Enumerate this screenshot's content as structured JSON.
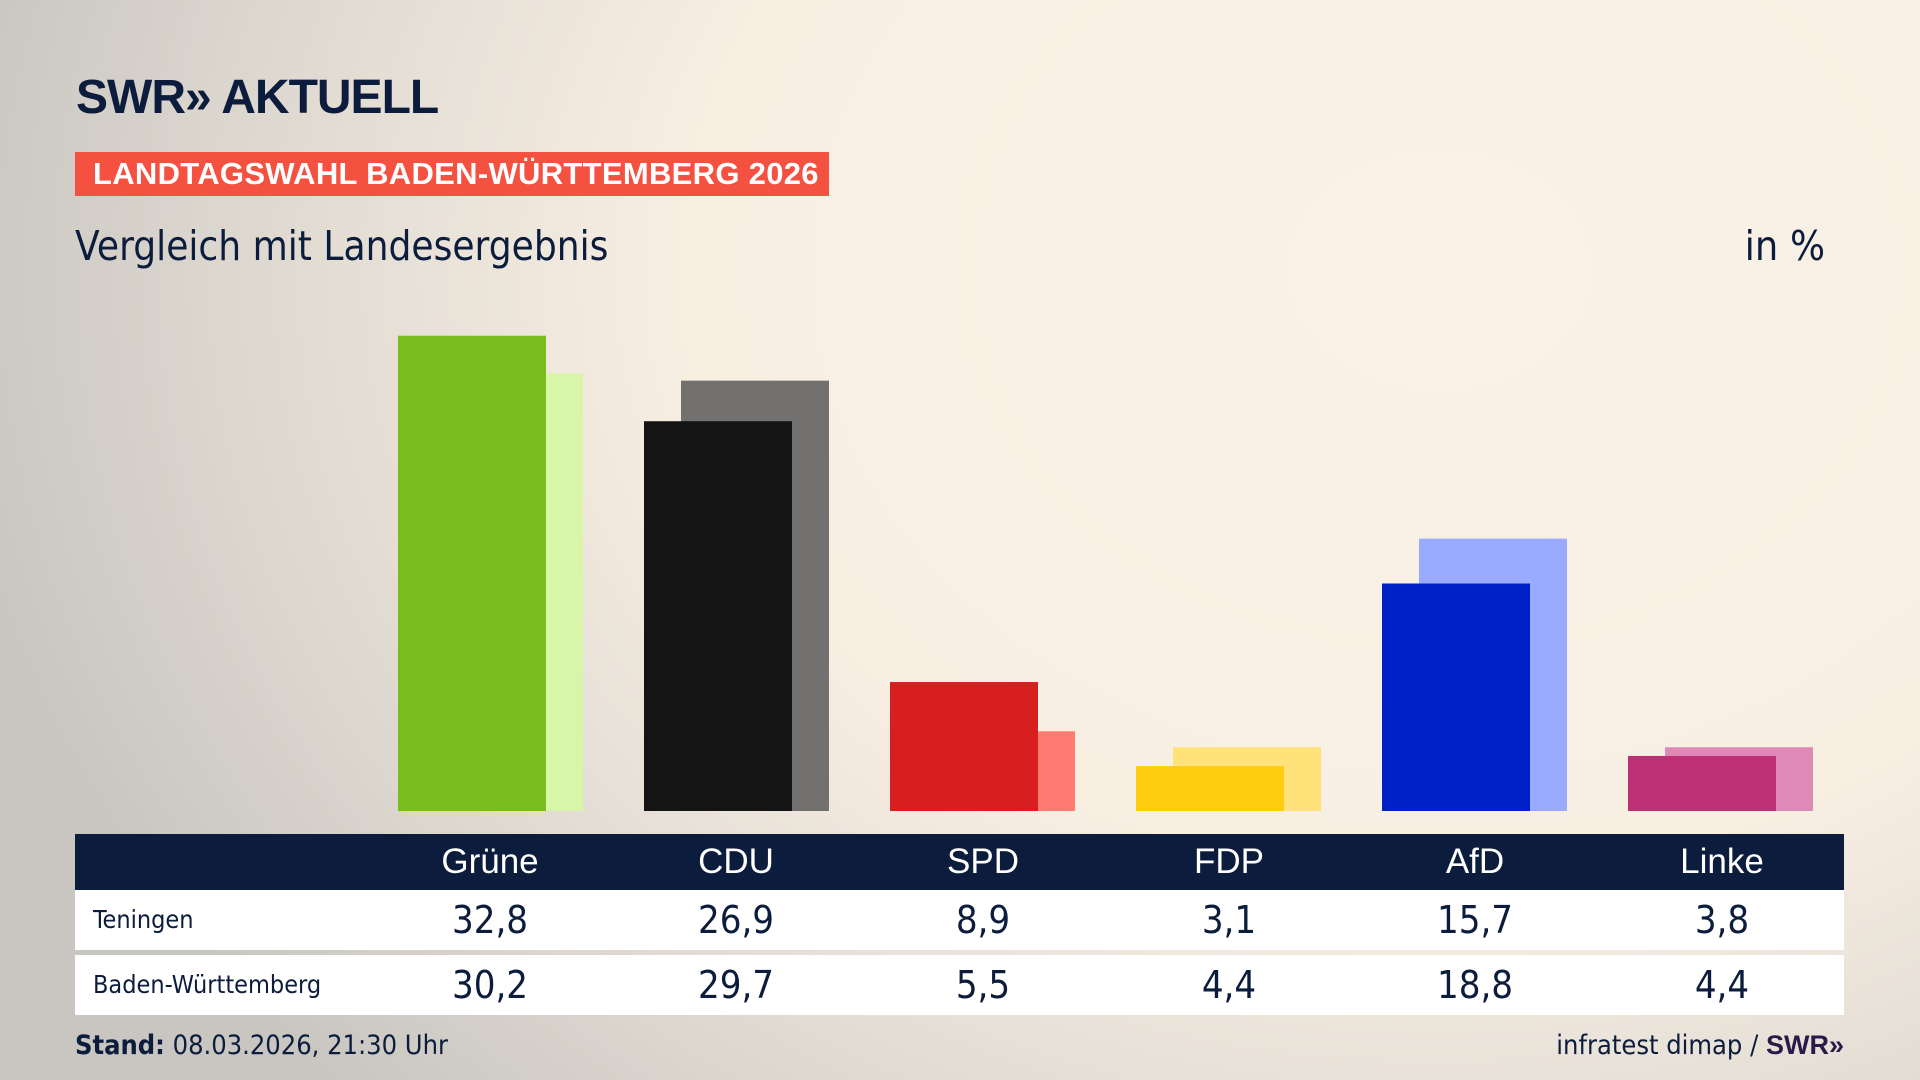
{
  "header": {
    "logo": "SWR» AKTUELL",
    "banner": "LANDTAGSWAHL BADEN-WÜRTTEMBERG 2026",
    "subtitle": "Vergleich mit Landesergebnis",
    "unit": "in %"
  },
  "chart_data": {
    "type": "bar",
    "categories": [
      "Grüne",
      "CDU",
      "SPD",
      "FDP",
      "AfD",
      "Linke"
    ],
    "series": [
      {
        "name": "Teningen",
        "values": [
          32.8,
          26.9,
          8.9,
          3.1,
          15.7,
          3.8
        ],
        "colors": [
          "#79bd1c",
          "#141414",
          "#d71f1f",
          "#ffcc0f",
          "#0021c8",
          "#be3075"
        ]
      },
      {
        "name": "Baden-Württemberg",
        "values": [
          30.2,
          29.7,
          5.5,
          4.4,
          18.8,
          4.4
        ],
        "colors": [
          "#d8f5a8",
          "#727170",
          "#ff7b72",
          "#ffe27a",
          "#9aabff",
          "#de8ab8"
        ]
      }
    ]
  },
  "table": {
    "headers": [
      "Grüne",
      "CDU",
      "SPD",
      "FDP",
      "AfD",
      "Linke"
    ],
    "rows": [
      {
        "label": "Teningen",
        "values": [
          "32,8",
          "26,9",
          "8,9",
          "3,1",
          "15,7",
          "3,8"
        ]
      },
      {
        "label": "Baden-Württemberg",
        "values": [
          "30,2",
          "29,7",
          "5,5",
          "4,4",
          "18,8",
          "4,4"
        ]
      }
    ]
  },
  "footer": {
    "stand_label": "Stand:",
    "stand_value": "08.03.2026, 21:30 Uhr",
    "source": "infratest dimap /",
    "source_logo": "SWR»"
  }
}
